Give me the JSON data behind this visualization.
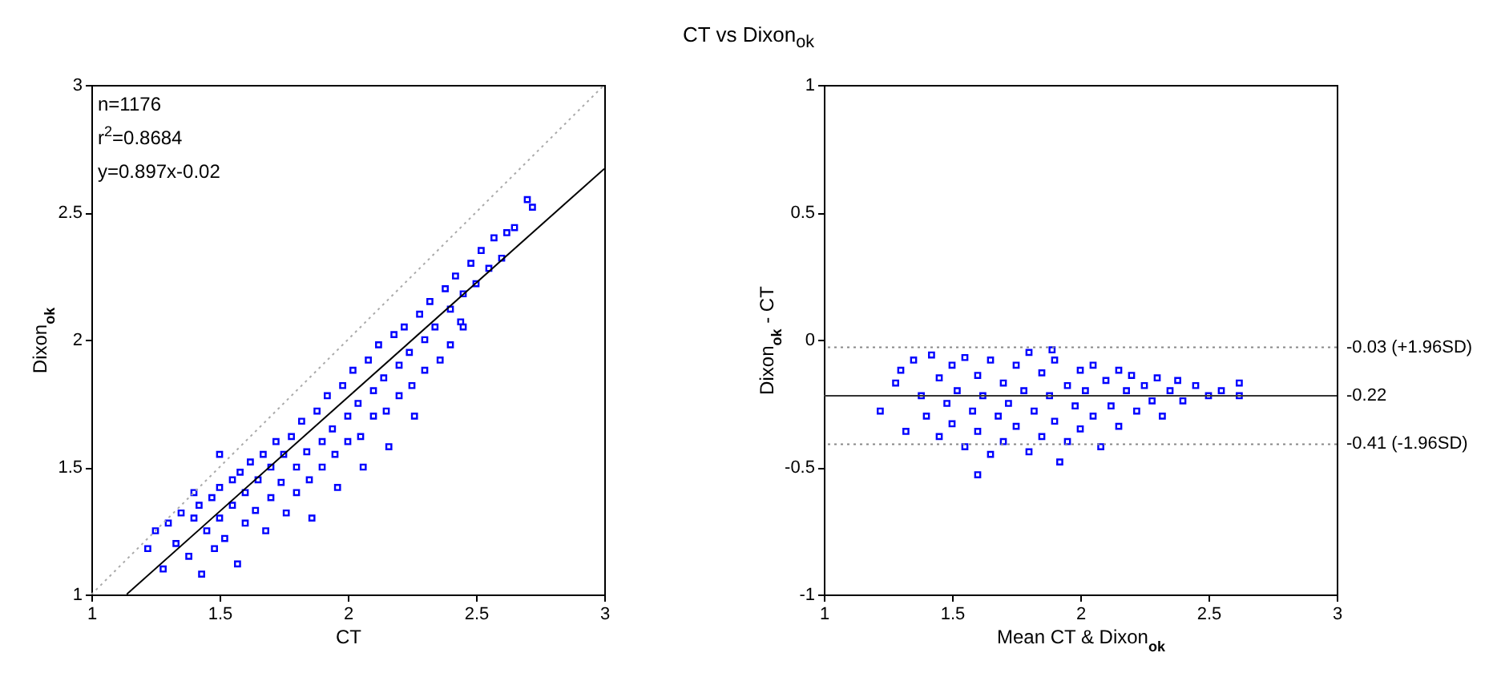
{
  "chart_data": [
    {
      "type": "scatter",
      "xlabel": "CT",
      "ylabel": "Dixon$_{ok}$",
      "xlim": [
        1,
        3
      ],
      "ylim": [
        1,
        3
      ],
      "xticks": [
        1,
        1.5,
        2,
        2.5,
        3
      ],
      "yticks": [
        1,
        1.5,
        2,
        2.5,
        3
      ],
      "grid": false,
      "annotations": [
        "n=1176",
        "r$^{2}$=0.8684",
        "y=0.897x-0.02"
      ],
      "series": [
        {
          "color": "#0000ff",
          "marker": "square",
          "x": [
            1.22,
            1.25,
            1.28,
            1.3,
            1.33,
            1.35,
            1.38,
            1.4,
            1.42,
            1.43,
            1.45,
            1.47,
            1.48,
            1.5,
            1.5,
            1.52,
            1.55,
            1.55,
            1.57,
            1.58,
            1.6,
            1.6,
            1.62,
            1.64,
            1.65,
            1.67,
            1.68,
            1.7,
            1.7,
            1.72,
            1.74,
            1.75,
            1.76,
            1.78,
            1.8,
            1.8,
            1.82,
            1.84,
            1.85,
            1.86,
            1.88,
            1.9,
            1.9,
            1.92,
            1.94,
            1.95,
            1.96,
            1.98,
            2,
            2,
            2.02,
            2.04,
            2.05,
            2.06,
            2.08,
            2.1,
            2.1,
            2.12,
            2.14,
            2.15,
            2.16,
            2.18,
            2.2,
            2.2,
            2.22,
            2.24,
            2.25,
            2.26,
            2.28,
            2.3,
            2.3,
            2.32,
            2.34,
            2.36,
            2.38,
            2.4,
            2.4,
            2.42,
            2.45,
            2.45,
            2.48,
            2.5,
            2.52,
            2.55,
            2.57,
            2.6,
            2.62,
            2.65,
            2.7,
            2.72,
            2.44,
            1.5,
            1.4
          ],
          "values": [
            1.18,
            1.25,
            1.1,
            1.28,
            1.2,
            1.32,
            1.15,
            1.3,
            1.35,
            1.08,
            1.25,
            1.38,
            1.18,
            1.42,
            1.3,
            1.22,
            1.45,
            1.35,
            1.12,
            1.48,
            1.4,
            1.28,
            1.52,
            1.33,
            1.45,
            1.55,
            1.25,
            1.5,
            1.38,
            1.6,
            1.44,
            1.55,
            1.32,
            1.62,
            1.5,
            1.4,
            1.68,
            1.56,
            1.45,
            1.3,
            1.72,
            1.6,
            1.5,
            1.78,
            1.65,
            1.55,
            1.42,
            1.82,
            1.7,
            1.6,
            1.88,
            1.75,
            1.62,
            1.5,
            1.92,
            1.8,
            1.7,
            1.98,
            1.85,
            1.72,
            1.58,
            2.02,
            1.9,
            1.78,
            2.05,
            1.95,
            1.82,
            1.7,
            2.1,
            2,
            1.88,
            2.15,
            2.05,
            1.92,
            2.2,
            2.12,
            1.98,
            2.25,
            2.18,
            2.05,
            2.3,
            2.22,
            2.35,
            2.28,
            2.4,
            2.32,
            2.42,
            2.44,
            2.55,
            2.52,
            2.07,
            1.55,
            1.4
          ]
        },
        {
          "type": "line",
          "color": "#000000",
          "line_style": "solid",
          "x": [
            1.138,
            3
          ],
          "values": [
            1.001,
            2.671
          ]
        },
        {
          "type": "line",
          "color": "#aaaaaa",
          "line_style": "dotted",
          "x": [
            1,
            3
          ],
          "values": [
            1,
            3
          ]
        }
      ]
    },
    {
      "type": "scatter",
      "title": "CT vs Dixon$_{ok}$",
      "xlabel": "Mean CT & Dixon$_{ok}$",
      "ylabel": "Dixon$_{ok}$ - CT",
      "xlim": [
        1,
        3
      ],
      "ylim": [
        -1,
        1
      ],
      "xticks": [
        1,
        1.5,
        2,
        2.5,
        3
      ],
      "yticks": [
        -1,
        -0.5,
        0,
        0.5,
        1
      ],
      "grid": false,
      "ref_lines": [
        {
          "axis": "y",
          "value": -0.03,
          "label": "-0.03 (+1.96SD)",
          "color": "#888888",
          "line_style": "dotted"
        },
        {
          "axis": "y",
          "value": -0.22,
          "label": "-0.22",
          "color": "#333333",
          "line_style": "solid"
        },
        {
          "axis": "y",
          "value": -0.41,
          "label": "-0.41 (-1.96SD)",
          "color": "#888888",
          "line_style": "dotted"
        }
      ],
      "series": [
        {
          "color": "#0000ff",
          "marker": "square",
          "x": [
            1.22,
            1.28,
            1.3,
            1.32,
            1.35,
            1.38,
            1.4,
            1.42,
            1.45,
            1.45,
            1.48,
            1.5,
            1.5,
            1.52,
            1.55,
            1.55,
            1.58,
            1.6,
            1.6,
            1.62,
            1.65,
            1.65,
            1.68,
            1.7,
            1.7,
            1.72,
            1.75,
            1.75,
            1.78,
            1.8,
            1.8,
            1.82,
            1.85,
            1.85,
            1.88,
            1.9,
            1.9,
            1.92,
            1.95,
            1.95,
            1.98,
            2,
            2,
            2.02,
            2.05,
            2.05,
            2.08,
            2.1,
            2.12,
            2.15,
            2.15,
            2.18,
            2.2,
            2.22,
            2.25,
            2.28,
            2.3,
            2.32,
            2.35,
            2.38,
            2.4,
            2.45,
            2.5,
            2.55,
            2.62,
            2.62,
            1.6,
            1.89
          ],
          "values": [
            -0.28,
            -0.17,
            -0.12,
            -0.36,
            -0.08,
            -0.22,
            -0.3,
            -0.06,
            -0.15,
            -0.38,
            -0.25,
            -0.1,
            -0.33,
            -0.2,
            -0.07,
            -0.42,
            -0.28,
            -0.14,
            -0.36,
            -0.22,
            -0.08,
            -0.45,
            -0.3,
            -0.17,
            -0.4,
            -0.25,
            -0.1,
            -0.34,
            -0.2,
            -0.05,
            -0.44,
            -0.28,
            -0.13,
            -0.38,
            -0.22,
            -0.08,
            -0.32,
            -0.48,
            -0.18,
            -0.4,
            -0.26,
            -0.12,
            -0.35,
            -0.2,
            -0.1,
            -0.3,
            -0.42,
            -0.16,
            -0.26,
            -0.12,
            -0.34,
            -0.2,
            -0.14,
            -0.28,
            -0.18,
            -0.24,
            -0.15,
            -0.3,
            -0.2,
            -0.16,
            -0.24,
            -0.18,
            -0.22,
            -0.2,
            -0.17,
            -0.22,
            -0.53,
            -0.04
          ]
        }
      ]
    }
  ]
}
